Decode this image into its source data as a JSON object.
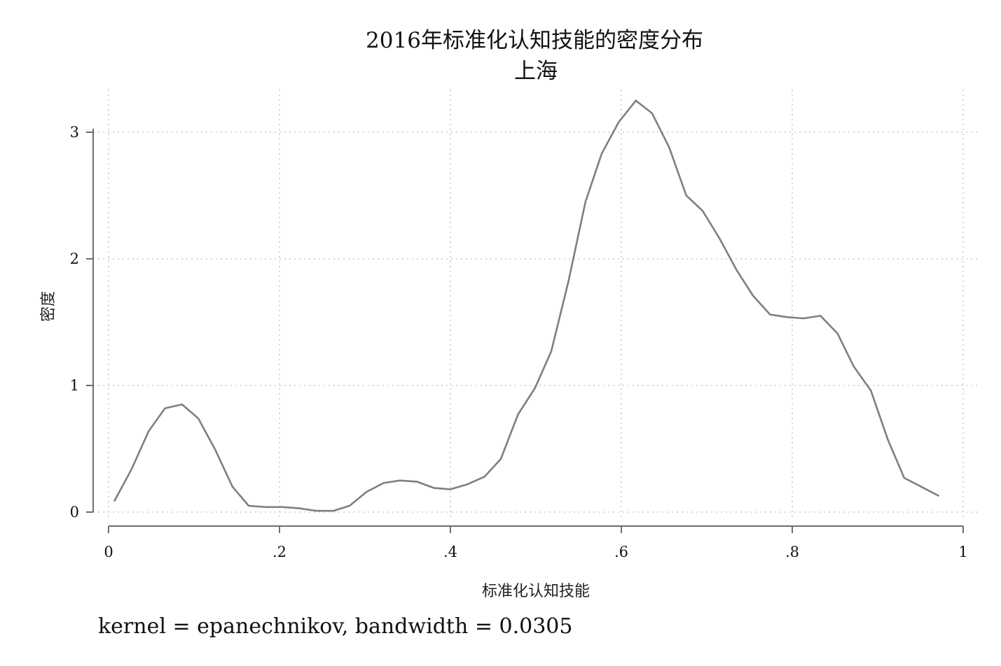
{
  "chart_data": {
    "type": "line",
    "title": "2016年标准化认知技能的密度分布",
    "subtitle": "上海",
    "xlabel": "标准化认知技能",
    "ylabel": "密度",
    "note": "kernel = epanechnikov, bandwidth = 0.0305",
    "xlim": [
      0,
      1
    ],
    "ylim": [
      0,
      3.3
    ],
    "x_ticks": [
      {
        "value": 0,
        "label": "0"
      },
      {
        "value": 0.2,
        "label": ".2"
      },
      {
        "value": 0.4,
        "label": ".4"
      },
      {
        "value": 0.6,
        "label": ".6"
      },
      {
        "value": 0.8,
        "label": ".8"
      },
      {
        "value": 1,
        "label": "1"
      }
    ],
    "y_ticks": [
      {
        "value": 0,
        "label": "0"
      },
      {
        "value": 1,
        "label": "1"
      },
      {
        "value": 2,
        "label": "2"
      },
      {
        "value": 3,
        "label": "3"
      }
    ],
    "grid": true,
    "colors": {
      "line": "#7f7f7f",
      "axis": "#6e6e6e",
      "grid": "#c8c8c8"
    },
    "series": [
      {
        "x": [
          0.007,
          0.027,
          0.047,
          0.066,
          0.086,
          0.105,
          0.125,
          0.145,
          0.164,
          0.184,
          0.204,
          0.223,
          0.243,
          0.263,
          0.282,
          0.302,
          0.322,
          0.341,
          0.361,
          0.381,
          0.4,
          0.42,
          0.44,
          0.459,
          0.479,
          0.499,
          0.518,
          0.538,
          0.558,
          0.577,
          0.597,
          0.617,
          0.636,
          0.656,
          0.676,
          0.695,
          0.715,
          0.735,
          0.754,
          0.774,
          0.794,
          0.813,
          0.833,
          0.853,
          0.872,
          0.892,
          0.912,
          0.931,
          0.951,
          0.971
        ],
        "y": [
          0.09,
          0.34,
          0.64,
          0.82,
          0.85,
          0.74,
          0.49,
          0.2,
          0.05,
          0.04,
          0.04,
          0.03,
          0.01,
          0.01,
          0.05,
          0.16,
          0.23,
          0.25,
          0.24,
          0.19,
          0.18,
          0.22,
          0.28,
          0.42,
          0.77,
          0.98,
          1.27,
          1.82,
          2.45,
          2.83,
          3.08,
          3.25,
          3.15,
          2.88,
          2.5,
          2.38,
          2.16,
          1.91,
          1.71,
          1.56,
          1.54,
          1.53,
          1.55,
          1.41,
          1.15,
          0.96,
          0.57,
          0.27,
          0.2,
          0.13
        ]
      }
    ]
  }
}
